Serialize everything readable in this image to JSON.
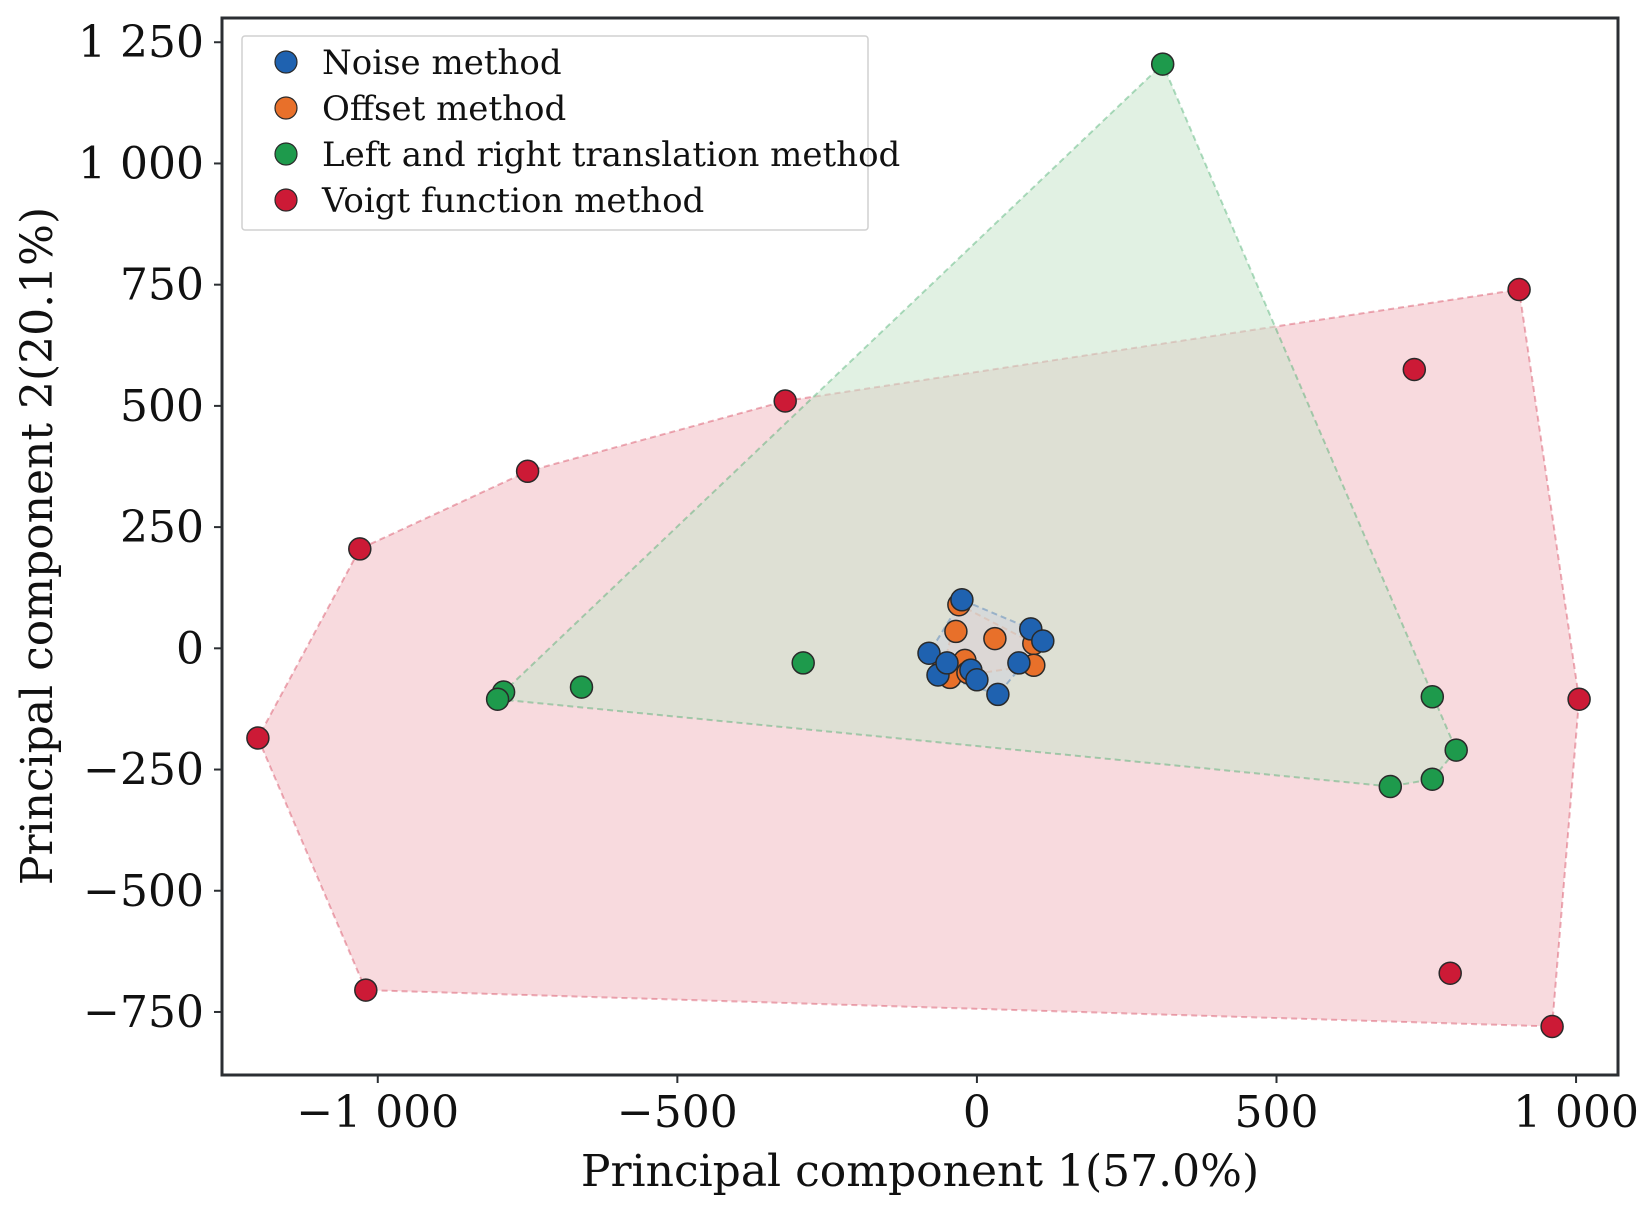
{
  "chart_data": {
    "type": "scatter",
    "title": "",
    "xlabel": "Principal component 1(57.0%)",
    "ylabel": "Principal component 2(20.1%)",
    "xlim": [
      -1260,
      1070
    ],
    "ylim": [
      -880,
      1300
    ],
    "xticks": [
      -1000,
      -500,
      0,
      500,
      1000
    ],
    "xtick_labels": [
      "−1 000",
      "−500",
      "0",
      "500",
      "1 000"
    ],
    "yticks": [
      -750,
      -500,
      -250,
      0,
      250,
      500,
      750,
      1000,
      1250
    ],
    "ytick_labels": [
      "−750",
      "−500",
      "−250",
      "0",
      "250",
      "500",
      "750",
      "1 000",
      "1 250"
    ],
    "grid": false,
    "legend_position": "top-left",
    "series": [
      {
        "name": "Noise method",
        "color": "#1f62b0",
        "hull_fill": "#cfd3dc",
        "points": [
          [
            -25,
            100
          ],
          [
            90,
            40
          ],
          [
            110,
            15
          ],
          [
            -80,
            -10
          ],
          [
            -65,
            -55
          ],
          [
            -10,
            -45
          ],
          [
            0,
            -65
          ],
          [
            70,
            -30
          ],
          [
            35,
            -95
          ],
          [
            -50,
            -30
          ]
        ]
      },
      {
        "name": "Offset method",
        "color": "#e8702a",
        "hull_fill": "#f5d8c6",
        "points": [
          [
            -30,
            90
          ],
          [
            -35,
            35
          ],
          [
            30,
            20
          ],
          [
            95,
            10
          ],
          [
            95,
            -35
          ],
          [
            -20,
            -25
          ],
          [
            -55,
            -35
          ],
          [
            -45,
            -60
          ],
          [
            -15,
            -50
          ]
        ]
      },
      {
        "name": "Left and right translation method",
        "color": "#1e9a4c",
        "hull_fill": "#c9e6cc",
        "points": [
          [
            310,
            1205
          ],
          [
            -290,
            -30
          ],
          [
            -660,
            -80
          ],
          [
            -790,
            -90
          ],
          [
            -800,
            -105
          ],
          [
            760,
            -100
          ],
          [
            800,
            -210
          ],
          [
            760,
            -270
          ],
          [
            690,
            -285
          ]
        ]
      },
      {
        "name": "Voigt function method",
        "color": "#cc1a36",
        "hull_fill": "#f5c6cd",
        "points": [
          [
            905,
            740
          ],
          [
            730,
            575
          ],
          [
            -320,
            510
          ],
          [
            -750,
            365
          ],
          [
            -1030,
            205
          ],
          [
            -1200,
            -185
          ],
          [
            -1020,
            -705
          ],
          [
            790,
            -670
          ],
          [
            960,
            -780
          ],
          [
            1005,
            -105
          ]
        ]
      }
    ]
  }
}
